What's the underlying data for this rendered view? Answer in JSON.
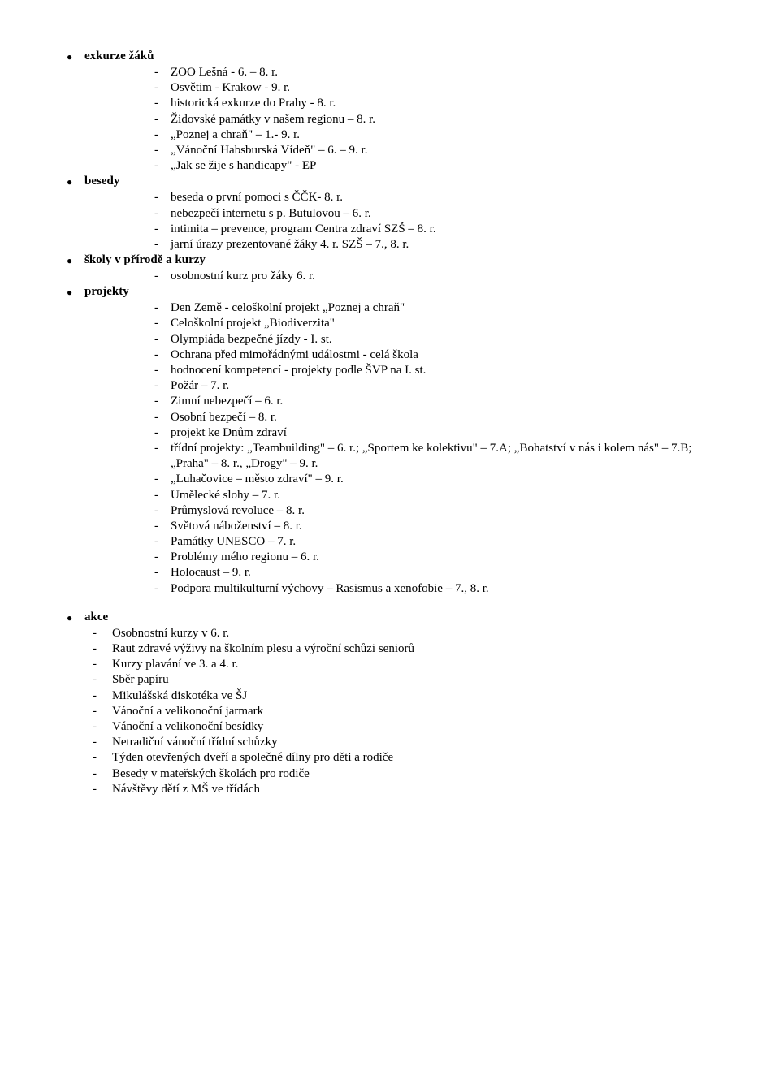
{
  "sections": {
    "exkurze": {
      "title": "exkurze žáků",
      "items": [
        "ZOO Lešná - 6. – 8. r.",
        "Osvětim  - Krakow - 9. r.",
        "historická exkurze do Prahy - 8. r.",
        "Židovské památky v našem regionu – 8. r.",
        "„Poznej a chraň\" – 1.- 9. r.",
        "„Vánoční Habsburská Vídeň\" – 6. – 9. r.",
        "„Jak se žije s handicapy\" - EP"
      ]
    },
    "besedy": {
      "title": "besedy",
      "items": [
        "beseda o první pomoci s ČČK- 8. r.",
        "nebezpečí internetu  s p. Butulovou – 6. r.",
        "intimita – prevence, program Centra  zdraví SZŠ – 8. r.",
        "jarní úrazy prezentované žáky 4. r. SZŠ – 7., 8. r."
      ]
    },
    "skoly": {
      "title": "školy v přírodě a kurzy",
      "items": [
        "osobnostní kurz pro žáky 6. r."
      ]
    },
    "projekty": {
      "title": "projekty",
      "items": [
        "Den Země - celoškolní projekt „Poznej a chraň\"",
        "Celoškolní projekt „Biodiverzita\"",
        "Olympiáda bezpečné jízdy - I. st.",
        "Ochrana před mimořádnými událostmi - celá škola",
        "hodnocení kompetencí - projekty podle ŠVP na I. st.",
        "Požár – 7. r.",
        "Zimní nebezpečí – 6. r.",
        "Osobní bezpečí – 8. r.",
        "projekt ke Dnům zdraví",
        "třídní projekty: „Teambuilding\" – 6. r.; „Sportem ke kolektivu\" – 7.A; „Bohatství v nás i kolem nás\" – 7.B; „Praha\" – 8. r., „Drogy\" – 9. r.",
        "„Luhačovice – město zdraví\" – 9. r.",
        "Umělecké slohy – 7. r.",
        "Průmyslová revoluce – 8. r.",
        "Světová náboženství – 8. r.",
        "Památky UNESCO – 7. r.",
        "Problémy mého regionu – 6. r.",
        "Holocaust – 9. r.",
        "Podpora multikulturní výchovy – Rasismus a xenofobie – 7., 8. r."
      ]
    },
    "akce": {
      "title": "akce",
      "items": [
        "Osobnostní kurzy v 6. r.",
        "Raut zdravé výživy na školním plesu a výroční schůzi seniorů",
        "Kurzy plavání ve 3. a 4. r.",
        "Sběr papíru",
        "Mikulášská diskotéka ve ŠJ",
        "Vánoční a velikonoční jarmark",
        "Vánoční a velikonoční besídky",
        "Netradiční vánoční třídní schůzky",
        "Týden otevřených dveří a společné dílny pro děti a rodiče",
        "Besedy v mateřských školách pro rodiče",
        "Návštěvy dětí z MŠ ve třídách"
      ]
    }
  }
}
